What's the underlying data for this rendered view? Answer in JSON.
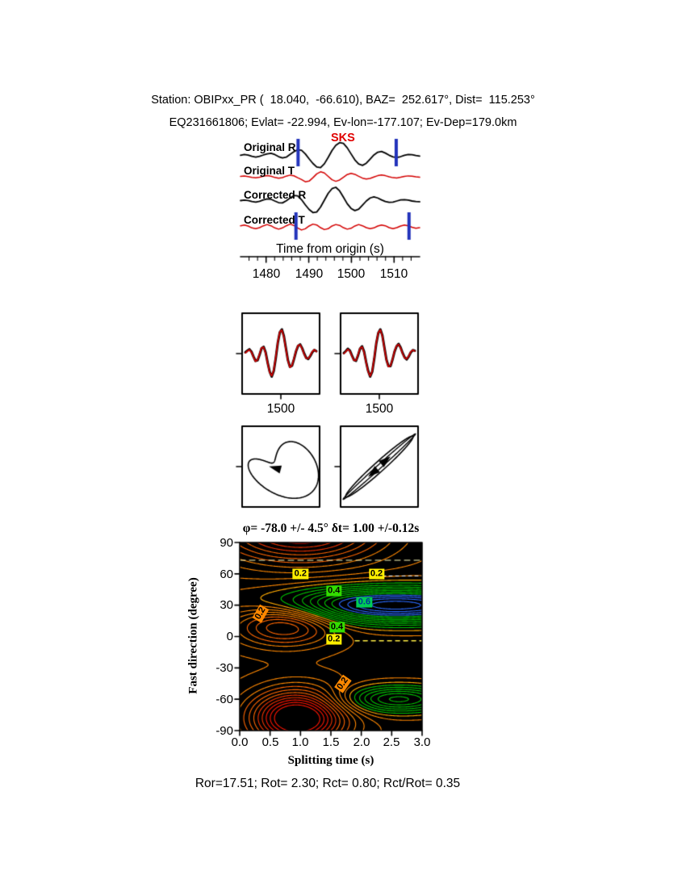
{
  "header": {
    "line1": "Station: OBIPxx_PR (  18.040,  -66.610), BAZ=  252.617°, Dist=  115.253°",
    "line2": "EQ231661806; Evlat= -22.994, Ev-lon=-177.107; Ev-Dep=179.0km"
  },
  "footer": "Ror=17.51; Rot= 2.30; Rct= 0.80; Rct/Rot= 0.35",
  "chart_data": [
    {
      "type": "line",
      "name": "waveforms",
      "xlabel": "Time from origin (s)",
      "phase_label": "SKS",
      "x_range": [
        1474,
        1516
      ],
      "xticks": [
        "1480",
        "1490",
        "1500",
        "1510"
      ],
      "xtick_values": [
        1480,
        1490,
        1500,
        1510
      ],
      "window_color": "#2233bb",
      "windows": [
        {
          "t1": 1487.5,
          "t2": 1510.5
        },
        {
          "t1": 1487.0,
          "t2": 1513.5
        }
      ],
      "traces": [
        {
          "label": "Original R",
          "color": "#000000",
          "amp": 17,
          "values": [
            0.04,
            0.09,
            0.05,
            -0.04,
            -0.09,
            -0.04,
            0.06,
            0.14,
            0.18,
            0.09,
            -0.06,
            -0.15,
            -0.1,
            0.1,
            0.3,
            0.44,
            0.4,
            0.14,
            -0.22,
            -0.56,
            -0.82,
            -0.86,
            -0.58,
            -0.12,
            0.38,
            0.76,
            0.96,
            0.9,
            0.58,
            0.14,
            -0.3,
            -0.6,
            -0.7,
            -0.54,
            -0.24,
            0.06,
            0.26,
            0.32,
            0.2,
            0.04,
            -0.08,
            -0.12,
            -0.06,
            0.04,
            0.1,
            0.08,
            0.02,
            -0.02
          ]
        },
        {
          "label": "Original T",
          "color": "#d40000",
          "amp": 14,
          "values": [
            0.04,
            0.07,
            0.02,
            -0.05,
            -0.09,
            -0.03,
            0.06,
            0.11,
            0.05,
            -0.06,
            -0.13,
            -0.07,
            0.06,
            0.15,
            0.09,
            -0.08,
            -0.24,
            -0.44,
            -0.38,
            -0.08,
            0.26,
            0.44,
            0.34,
            0.04,
            -0.26,
            -0.4,
            -0.28,
            -0.04,
            0.2,
            0.3,
            0.22,
            0.04,
            -0.12,
            -0.2,
            -0.14,
            -0.02,
            0.1,
            0.16,
            0.1,
            0.0,
            -0.08,
            -0.1,
            -0.04,
            0.04,
            0.08,
            0.06,
            0.0,
            -0.04
          ]
        },
        {
          "label": "Corrected R",
          "color": "#000000",
          "amp": 17,
          "values": [
            0.03,
            0.07,
            0.04,
            -0.04,
            -0.08,
            -0.02,
            0.08,
            0.16,
            0.13,
            0.0,
            -0.12,
            -0.14,
            0.02,
            0.22,
            0.4,
            0.38,
            0.1,
            -0.28,
            -0.62,
            -0.84,
            -0.8,
            -0.44,
            0.06,
            0.56,
            0.9,
            1.0,
            0.74,
            0.28,
            -0.2,
            -0.54,
            -0.7,
            -0.6,
            -0.3,
            0.0,
            0.22,
            0.3,
            0.22,
            0.08,
            -0.04,
            -0.1,
            -0.08,
            0.0,
            0.08,
            0.1,
            0.06,
            0.0,
            -0.04,
            -0.05
          ]
        },
        {
          "label": "Corrected T",
          "color": "#d40000",
          "amp": 13,
          "values": [
            0.1,
            0.18,
            0.08,
            -0.1,
            -0.18,
            -0.08,
            0.1,
            0.22,
            0.1,
            -0.1,
            -0.22,
            -0.1,
            0.1,
            0.26,
            0.14,
            -0.1,
            -0.3,
            -0.18,
            0.08,
            0.26,
            0.18,
            -0.08,
            -0.26,
            -0.18,
            0.08,
            0.22,
            0.14,
            -0.08,
            -0.22,
            -0.14,
            0.08,
            0.22,
            0.1,
            -0.08,
            -0.18,
            -0.1,
            0.08,
            0.18,
            0.1,
            -0.08,
            -0.18,
            -0.08,
            0.08,
            0.18,
            0.1,
            -0.04,
            -0.14,
            -0.08
          ]
        }
      ]
    },
    {
      "type": "line",
      "name": "waveform-comparison",
      "xtick": "1500",
      "colors": {
        "black": "#000000",
        "red": "#d40000"
      },
      "panels": [
        {
          "black": [
            0.05,
            0.12,
            0.18,
            0.08,
            -0.12,
            -0.3,
            -0.28,
            -0.05,
            0.22,
            0.28,
            0.05,
            -0.38,
            -0.75,
            -0.95,
            -0.72,
            -0.18,
            0.45,
            0.88,
            1.0,
            0.72,
            0.22,
            -0.28,
            -0.55,
            -0.5,
            -0.22,
            0.1,
            0.32,
            0.38,
            0.22,
            0.0,
            -0.18,
            -0.22,
            -0.1,
            0.06,
            0.15,
            0.1
          ],
          "red": [
            0.03,
            0.1,
            0.16,
            0.06,
            -0.14,
            -0.32,
            -0.26,
            -0.02,
            0.24,
            0.26,
            0.02,
            -0.4,
            -0.78,
            -0.92,
            -0.68,
            -0.14,
            0.48,
            0.9,
            0.97,
            0.68,
            0.18,
            -0.3,
            -0.57,
            -0.48,
            -0.2,
            0.12,
            0.34,
            0.36,
            0.2,
            -0.02,
            -0.2,
            -0.2,
            -0.08,
            0.08,
            0.16,
            0.08
          ]
        },
        {
          "black": [
            0.02,
            0.1,
            0.2,
            0.12,
            -0.08,
            -0.26,
            -0.3,
            -0.08,
            0.2,
            0.3,
            0.08,
            -0.35,
            -0.72,
            -0.95,
            -0.75,
            -0.22,
            0.42,
            0.85,
            1.0,
            0.75,
            0.25,
            -0.25,
            -0.52,
            -0.52,
            -0.25,
            0.08,
            0.3,
            0.4,
            0.25,
            0.02,
            -0.16,
            -0.24,
            -0.12,
            0.05,
            0.14,
            0.12
          ],
          "red": [
            0.0,
            0.08,
            0.18,
            0.1,
            -0.1,
            -0.28,
            -0.28,
            -0.05,
            0.22,
            0.28,
            0.05,
            -0.37,
            -0.75,
            -0.93,
            -0.72,
            -0.18,
            0.45,
            0.87,
            0.98,
            0.72,
            0.22,
            -0.27,
            -0.54,
            -0.5,
            -0.23,
            0.1,
            0.32,
            0.38,
            0.23,
            0.0,
            -0.18,
            -0.22,
            -0.1,
            0.07,
            0.15,
            0.1
          ]
        }
      ]
    },
    {
      "type": "scatter",
      "name": "particle-motion",
      "panels": [
        {
          "curves": [
            {
              "fx": [
                [
                  0.78,
                  1,
                  0
                ],
                [
                  0.32,
                  2,
                  1.2
                ]
              ],
              "fy": [
                [
                  0.52,
                  1,
                  -1.57
                ],
                [
                  0.34,
                  2,
                  -0.95
                ]
              ],
              "lw": 1.6
            }
          ],
          "scale": [
            46,
            48
          ],
          "arrows": [
            {
              "dx": -6,
              "dy": 2,
              "ang": 195
            }
          ]
        },
        {
          "curves": [
            {
              "fx": [
                [
                  0.95,
                  1,
                  0
                ]
              ],
              "fy": [
                [
                  0.8,
                  1,
                  0
                ],
                [
                  0.18,
                  1,
                  -1.57
                ]
              ],
              "lw": 1.6
            },
            {
              "fx": [
                [
                  1.02,
                  1,
                  0
                ]
              ],
              "fy": [
                [
                  0.88,
                  1,
                  0
                ],
                [
                  0.07,
                  1,
                  -1.57
                ]
              ],
              "lw": 1.4
            }
          ],
          "scale": [
            44,
            46
          ],
          "arrows": [
            {
              "dx": 7,
              "dy": -7,
              "ang": -40
            },
            {
              "dx": -7,
              "dy": 7,
              "ang": 140
            }
          ]
        }
      ]
    },
    {
      "type": "heatmap",
      "name": "splitting-misfit-contour",
      "title": "φ= -78.0 +/- 4.5° δt= 1.00 +/-0.12s",
      "xlabel": "Splitting time (s)",
      "ylabel": "Fast direction (degree)",
      "x_range": [
        0,
        3
      ],
      "y_range": [
        -90,
        90
      ],
      "xticks": [
        "0.0",
        "0.5",
        "1.0",
        "1.5",
        "2.0",
        "2.5",
        "3.0"
      ],
      "yticks": [
        "90",
        "60",
        "30",
        "0",
        "-30",
        "-60",
        "-90"
      ],
      "xtick_values": [
        0,
        0.5,
        1,
        1.5,
        2,
        2.5,
        3
      ],
      "ytick_values": [
        90,
        60,
        30,
        0,
        -30,
        -60,
        -90
      ],
      "background": "#000000",
      "best_fit": {
        "phi": -78.0,
        "phi_err": 4.5,
        "dt": 1.0,
        "dt_err": 0.12
      },
      "star": {
        "x": 1.0,
        "y": -78,
        "color": "#000000"
      },
      "field": {
        "base": 0.34,
        "gaussians": [
          {
            "a": -0.4,
            "x0": 0.95,
            "sx": 0.75,
            "y0": -78,
            "sy": 26
          },
          {
            "a": -0.3,
            "x0": 1.0,
            "sx": 1.3,
            "y0": 102,
            "sy": 30
          },
          {
            "a": -0.22,
            "x0": 0.75,
            "sx": 0.8,
            "y0": 12,
            "sy": 20
          },
          {
            "a": 0.4,
            "x0": 2.55,
            "sx": 1.9,
            "y0": 30,
            "sy": 17
          },
          {
            "a": 0.24,
            "x0": 2.6,
            "sx": 0.9,
            "y0": -60,
            "sy": 13
          }
        ]
      },
      "levels": {
        "start": 0.03,
        "step": 0.03,
        "end": 0.73
      },
      "color_stops": [
        {
          "max": 0.09,
          "color": "#ff1500"
        },
        {
          "max": 0.16,
          "color": "#f03300"
        },
        {
          "max": 0.25,
          "color": "#ff6600"
        },
        {
          "max": 0.37,
          "color": "#ff8800"
        },
        {
          "max": 0.41,
          "color": "#ffaa00"
        },
        {
          "max": 0.61,
          "color": "#00c400"
        },
        {
          "max": 1.0,
          "color": "#2b6bff"
        }
      ],
      "contour_labels": [
        {
          "text": "0.2",
          "x": 1.0,
          "y": 60,
          "bg": "#ffee00",
          "fg": "#000000",
          "rot": 0
        },
        {
          "text": "0.2",
          "x": 2.25,
          "y": 60,
          "bg": "#ffee00",
          "fg": "#000000",
          "rot": 0
        },
        {
          "text": "0.4",
          "x": 1.55,
          "y": 44,
          "bg": "#33dd00",
          "fg": "#000000",
          "rot": 0
        },
        {
          "text": "0.6",
          "x": 2.05,
          "y": 33,
          "bg": "#00cc55",
          "fg": "#003399",
          "rot": 0
        },
        {
          "text": "0.4",
          "x": 1.6,
          "y": 9,
          "bg": "#33dd00",
          "fg": "#000000",
          "rot": 0
        },
        {
          "text": "0.2",
          "x": 0.35,
          "y": 22,
          "bg": "#ff8800",
          "fg": "#000000",
          "rot": -60
        },
        {
          "text": "0.2",
          "x": 1.55,
          "y": -3,
          "bg": "#ffee00",
          "fg": "#000000",
          "rot": 0
        },
        {
          "text": "0.2",
          "x": 1.7,
          "y": -45,
          "bg": "#ff8800",
          "fg": "#000000",
          "rot": -55
        }
      ],
      "dashes": [
        {
          "x1": 0.0,
          "y1": 73,
          "x2": 3.0,
          "y2": 73,
          "color": "#ffffbb",
          "dash": [
            7,
            5
          ],
          "w": 1
        },
        {
          "x1": 1.9,
          "y1": -4,
          "x2": 3.0,
          "y2": -4,
          "color": "#ffee44",
          "dash": [
            5,
            5
          ],
          "w": 1.5
        },
        {
          "x1": 2.35,
          "y1": 58,
          "x2": 3.0,
          "y2": 58,
          "color": "#ffffff",
          "dash": [
            4,
            4
          ],
          "w": 1
        }
      ]
    }
  ]
}
